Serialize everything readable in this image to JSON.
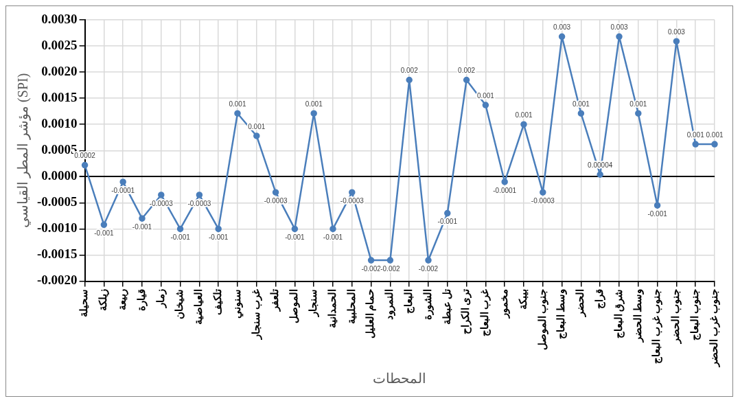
{
  "chart_data": {
    "type": "line",
    "xlabel": "المحطات",
    "ylabel": "مؤشر المطر القياسي (SPI)",
    "categories": [
      "سحيلة",
      "زيلكة",
      "ربيعة",
      "قيارة",
      "زمار",
      "شيخان",
      "العياضية",
      "تلكيف",
      "سنوني",
      "غرب سنجار",
      "تلعفر",
      "الموصل",
      "سنجار",
      "الحمدانية",
      "المحلبية",
      "حمام العليل",
      "النمرود",
      "البعاج",
      "الشورة",
      "تل عبطة",
      "ترى الكراح",
      "غرب البعاج",
      "مخمور",
      "بيبكة",
      "جنوب الموصل",
      "وسط البعاج",
      "الحضر",
      "قراج",
      "شرق البعاج",
      "وسط الحضر",
      "جنوب غرب البعاج",
      "جنوب الحضر",
      "جنوب البعاج",
      "جنوب غرب الحضر"
    ],
    "series": [
      {
        "color": "#4a7ebb",
        "values": [
          0.00022,
          -0.00092,
          -0.0001,
          -0.0008,
          -0.00035,
          -0.001,
          -0.00035,
          -0.001,
          0.00121,
          0.00078,
          -0.0003,
          -0.001,
          0.00121,
          -0.001,
          -0.0003,
          -0.0016,
          -0.0016,
          0.00185,
          -0.0016,
          -0.0007,
          0.00185,
          0.00137,
          -0.0001,
          0.001,
          -0.0003,
          0.00268,
          0.00121,
          4e-05,
          0.00268,
          0.00121,
          -0.00055,
          0.00259,
          0.00062,
          0.00062
        ],
        "value_labels": [
          "0.0002",
          "-0.001",
          "-0.0001",
          "-0.001",
          "-0.0003",
          "-0.001",
          "-0.0003",
          "-0.001",
          "0.001",
          "0.001",
          "-0.0003",
          "-0.001",
          "0.001",
          "-0.001",
          "-0.0003",
          "-0.002",
          "-0.002",
          "0.002",
          "-0.002",
          "-0.001",
          "0.002",
          "0.001",
          "-0.0001",
          "0.001",
          "-0.0003",
          "0.003",
          "0.001",
          "0.00004",
          "0.003",
          "0.001",
          "-0.001",
          "0.003",
          "0.001",
          "0.001"
        ]
      }
    ],
    "ylim": [
      -0.002,
      0.003
    ],
    "yticks": [
      {
        "value": -0.002,
        "label": "-0.0020"
      },
      {
        "value": -0.0015,
        "label": "-0.0015"
      },
      {
        "value": -0.001,
        "label": "-0.0010"
      },
      {
        "value": -0.0005,
        "label": "-0.0005"
      },
      {
        "value": 0,
        "label": "0.0000"
      },
      {
        "value": 0.0005,
        "label": "0.0005"
      },
      {
        "value": 0.001,
        "label": "0.0010"
      },
      {
        "value": 0.0015,
        "label": "0.0015"
      },
      {
        "value": 0.002,
        "label": "0.0020"
      },
      {
        "value": 0.0025,
        "label": "0.0025"
      },
      {
        "value": 0.003,
        "label": "0.0030"
      }
    ],
    "grid": true,
    "legend": false,
    "marker": "circle",
    "line_style": "solid"
  }
}
